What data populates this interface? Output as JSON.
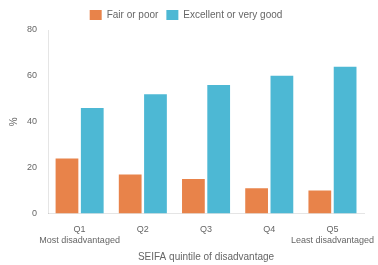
{
  "chart_data": {
    "type": "bar",
    "categories": [
      "Q1",
      "Q2",
      "Q3",
      "Q4",
      "Q5"
    ],
    "series": [
      {
        "name": "Fair or poor",
        "color": "#E8834A",
        "values": [
          24,
          17,
          15,
          11,
          10
        ]
      },
      {
        "name": "Excellent or very good",
        "color": "#4DB8D4",
        "values": [
          46,
          52,
          56,
          60,
          64
        ]
      }
    ],
    "x_label": "SEIFA quintile of disadvantage",
    "y_label": "%",
    "annotations": [
      {
        "text": "Most disadvantaged",
        "x": "Q1"
      },
      {
        "text": "Least disadvantaged",
        "x": "Q5"
      }
    ],
    "ylim": [
      0,
      80
    ],
    "yticks": [
      0,
      20,
      40,
      60,
      80
    ],
    "grid": false,
    "legend": "top"
  }
}
